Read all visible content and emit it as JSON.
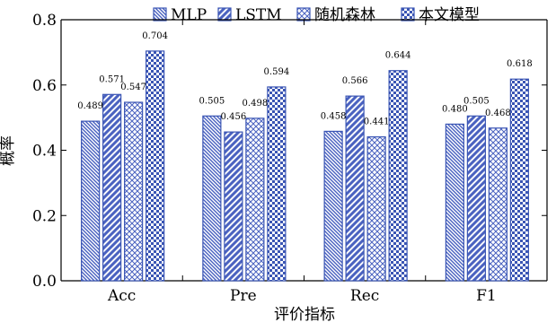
{
  "chart_data": {
    "type": "bar",
    "title": "",
    "xlabel": "评价指标",
    "ylabel": "概率",
    "categories": [
      "Acc",
      "Pre",
      "Rec",
      "F1"
    ],
    "ylim": [
      0,
      0.8
    ],
    "yticks": [
      "0.0",
      "0.2",
      "0.4",
      "0.6",
      "0.8"
    ],
    "legend_position": "top",
    "grid": false,
    "series": [
      {
        "name": "MLP",
        "values": [
          0.489,
          0.505,
          0.458,
          0.48
        ],
        "labels": [
          "0.489",
          "0.505",
          "0.458",
          "0.480"
        ]
      },
      {
        "name": "LSTM",
        "values": [
          0.571,
          0.456,
          0.566,
          0.505
        ],
        "labels": [
          "0.571",
          "0.456",
          "0.566",
          "0.505"
        ]
      },
      {
        "name": "随机森林",
        "values": [
          0.547,
          0.498,
          0.441,
          0.468
        ],
        "labels": [
          "0.547",
          "0.498",
          "0.441",
          "0.468"
        ]
      },
      {
        "name": "本文模型",
        "values": [
          0.704,
          0.594,
          0.644,
          0.618
        ],
        "labels": [
          "0.704",
          "0.594",
          "0.644",
          "0.618"
        ]
      }
    ],
    "colors": {
      "bar_stroke": "#3a55b4",
      "bar_fill": "#4a62c0",
      "axis": "#000000"
    }
  }
}
